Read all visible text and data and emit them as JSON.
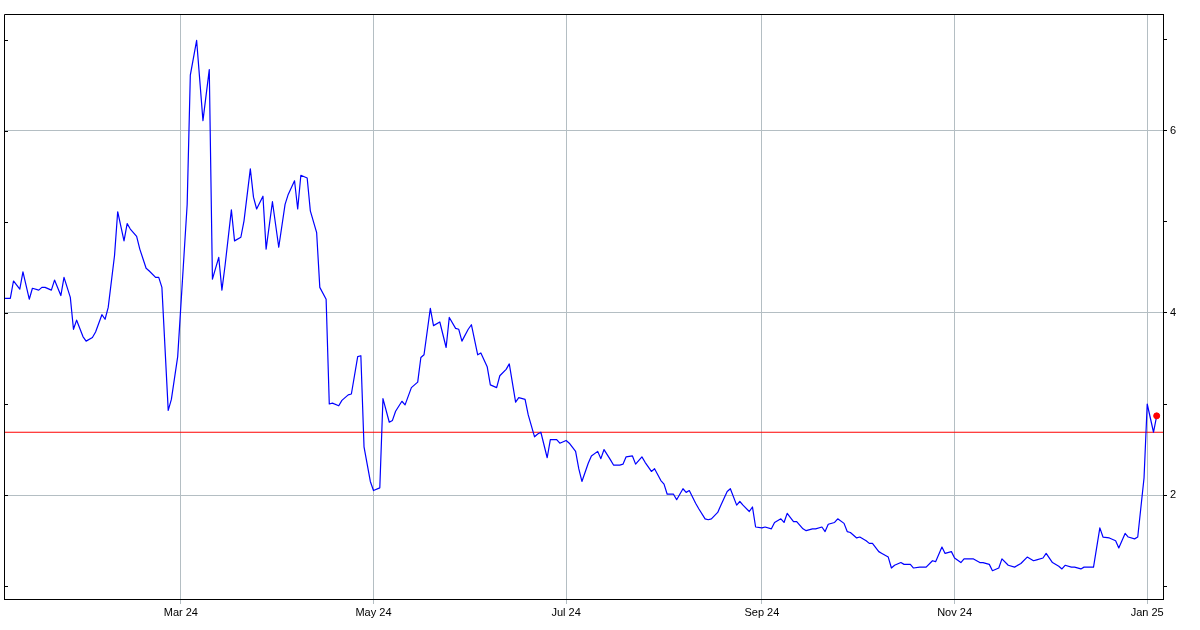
{
  "chart_data": {
    "type": "line",
    "x": [
      "2024-01-05",
      "2024-01-07",
      "2024-01-08",
      "2024-01-10",
      "2024-01-11",
      "2024-01-13",
      "2024-01-14",
      "2024-01-16",
      "2024-01-17",
      "2024-01-18",
      "2024-01-20",
      "2024-01-21",
      "2024-01-23",
      "2024-01-24",
      "2024-01-26",
      "2024-01-27",
      "2024-01-28",
      "2024-01-30",
      "2024-01-31",
      "2024-02-02",
      "2024-02-03",
      "2024-02-05",
      "2024-02-06",
      "2024-02-07",
      "2024-02-09",
      "2024-02-10",
      "2024-02-12",
      "2024-02-13",
      "2024-02-14",
      "2024-02-16",
      "2024-02-17",
      "2024-02-19",
      "2024-02-20",
      "2024-02-22",
      "2024-02-23",
      "2024-02-24",
      "2024-02-26",
      "2024-02-27",
      "2024-02-29",
      "2024-03-03",
      "2024-03-04",
      "2024-03-06",
      "2024-03-08",
      "2024-03-10",
      "2024-03-11",
      "2024-03-13",
      "2024-03-14",
      "2024-03-15",
      "2024-03-17",
      "2024-03-18",
      "2024-03-20",
      "2024-03-21",
      "2024-03-23",
      "2024-03-24",
      "2024-03-25",
      "2024-03-27",
      "2024-03-28",
      "2024-03-30",
      "2024-03-31",
      "2024-04-01",
      "2024-04-03",
      "2024-04-04",
      "2024-04-06",
      "2024-04-07",
      "2024-04-08",
      "2024-04-10",
      "2024-04-11",
      "2024-04-13",
      "2024-04-14",
      "2024-04-16",
      "2024-04-17",
      "2024-04-18",
      "2024-04-20",
      "2024-04-21",
      "2024-04-23",
      "2024-04-24",
      "2024-04-26",
      "2024-04-27",
      "2024-04-28",
      "2024-04-30",
      "2024-05-01",
      "2024-05-03",
      "2024-05-04",
      "2024-05-06",
      "2024-05-07",
      "2024-05-08",
      "2024-05-10",
      "2024-05-11",
      "2024-05-13",
      "2024-05-15",
      "2024-05-16",
      "2024-05-17",
      "2024-05-19",
      "2024-05-20",
      "2024-05-22",
      "2024-05-24",
      "2024-05-25",
      "2024-05-27",
      "2024-05-28",
      "2024-05-29",
      "2024-05-31",
      "2024-06-01",
      "2024-06-03",
      "2024-06-04",
      "2024-06-06",
      "2024-06-07",
      "2024-06-09",
      "2024-06-10",
      "2024-06-12",
      "2024-06-13",
      "2024-06-15",
      "2024-06-16",
      "2024-06-18",
      "2024-06-19",
      "2024-06-21",
      "2024-06-22",
      "2024-06-23",
      "2024-06-25",
      "2024-06-26",
      "2024-06-28",
      "2024-06-29",
      "2024-07-01",
      "2024-07-02",
      "2024-07-04",
      "2024-07-05",
      "2024-07-06",
      "2024-07-08",
      "2024-07-09",
      "2024-07-11",
      "2024-07-12",
      "2024-07-13",
      "2024-07-15",
      "2024-07-16",
      "2024-07-18",
      "2024-07-19",
      "2024-07-20",
      "2024-07-22",
      "2024-07-23",
      "2024-07-25",
      "2024-07-26",
      "2024-07-28",
      "2024-07-29",
      "2024-07-31",
      "2024-08-01",
      "2024-08-02",
      "2024-08-04",
      "2024-08-05",
      "2024-08-07",
      "2024-08-08",
      "2024-08-09",
      "2024-08-11",
      "2024-08-12",
      "2024-08-14",
      "2024-08-15",
      "2024-08-16",
      "2024-08-18",
      "2024-08-19",
      "2024-08-21",
      "2024-08-22",
      "2024-08-24",
      "2024-08-25",
      "2024-08-26",
      "2024-08-28",
      "2024-08-29",
      "2024-08-30",
      "2024-09-01",
      "2024-09-02",
      "2024-09-04",
      "2024-09-05",
      "2024-09-07",
      "2024-09-08",
      "2024-09-09",
      "2024-09-11",
      "2024-09-12",
      "2024-09-14",
      "2024-09-15",
      "2024-09-17",
      "2024-09-18",
      "2024-09-20",
      "2024-09-21",
      "2024-09-22",
      "2024-09-24",
      "2024-09-25",
      "2024-09-27",
      "2024-09-28",
      "2024-09-29",
      "2024-10-01",
      "2024-10-02",
      "2024-10-04",
      "2024-10-05",
      "2024-10-06",
      "2024-10-08",
      "2024-10-09",
      "2024-10-11",
      "2024-10-12",
      "2024-10-13",
      "2024-10-15",
      "2024-10-16",
      "2024-10-18",
      "2024-10-19",
      "2024-10-21",
      "2024-10-22",
      "2024-10-23",
      "2024-10-25",
      "2024-10-26",
      "2024-10-28",
      "2024-10-29",
      "2024-10-31",
      "2024-11-01",
      "2024-11-03",
      "2024-11-04",
      "2024-11-06",
      "2024-11-07",
      "2024-11-09",
      "2024-11-10",
      "2024-11-12",
      "2024-11-13",
      "2024-11-15",
      "2024-11-16",
      "2024-11-18",
      "2024-11-20",
      "2024-11-22",
      "2024-11-24",
      "2024-11-26",
      "2024-11-27",
      "2024-11-29",
      "2024-11-30",
      "2024-12-02",
      "2024-12-04",
      "2024-12-05",
      "2024-12-06",
      "2024-12-08",
      "2024-12-09",
      "2024-12-11",
      "2024-12-12",
      "2024-12-15",
      "2024-12-17",
      "2024-12-18",
      "2024-12-20",
      "2024-12-22",
      "2024-12-23",
      "2024-12-25",
      "2024-12-26",
      "2024-12-28",
      "2024-12-29",
      "2024-12-31",
      "2025-01-01",
      "2025-01-03",
      "2025-01-04"
    ],
    "series": [
      {
        "color": "#0000ff",
        "values": [
          4.16,
          4.16,
          4.35,
          4.26,
          4.45,
          4.15,
          4.27,
          4.25,
          4.28,
          4.28,
          4.25,
          4.36,
          4.19,
          4.39,
          4.17,
          3.82,
          3.92,
          3.74,
          3.69,
          3.73,
          3.79,
          3.98,
          3.93,
          4.06,
          4.63,
          5.11,
          4.79,
          4.98,
          4.92,
          4.84,
          4.7,
          4.49,
          4.46,
          4.39,
          4.39,
          4.28,
          2.93,
          3.05,
          3.52,
          5.19,
          6.61,
          6.99,
          6.11,
          6.67,
          4.37,
          4.61,
          4.25,
          4.52,
          5.13,
          4.79,
          4.83,
          5.01,
          5.58,
          5.27,
          5.14,
          5.28,
          4.7,
          5.22,
          4.97,
          4.72,
          5.19,
          5.3,
          5.45,
          5.14,
          5.51,
          5.48,
          5.12,
          4.88,
          4.28,
          4.15,
          3.0,
          3.01,
          2.98,
          3.04,
          3.1,
          3.11,
          3.52,
          3.53,
          2.53,
          2.15,
          2.05,
          2.08,
          3.06,
          2.8,
          2.82,
          2.92,
          3.03,
          2.99,
          3.18,
          3.24,
          3.51,
          3.54,
          4.05,
          3.86,
          3.9,
          3.62,
          3.95,
          3.83,
          3.82,
          3.69,
          3.82,
          3.87,
          3.54,
          3.56,
          3.41,
          3.21,
          3.18,
          3.31,
          3.38,
          3.44,
          3.02,
          3.07,
          3.05,
          2.88,
          2.64,
          2.67,
          2.69,
          2.41,
          2.61,
          2.61,
          2.57,
          2.6,
          2.57,
          2.48,
          2.29,
          2.15,
          2.35,
          2.43,
          2.48,
          2.4,
          2.5,
          2.39,
          2.33,
          2.33,
          2.34,
          2.42,
          2.43,
          2.34,
          2.42,
          2.36,
          2.26,
          2.29,
          2.16,
          2.12,
          2.01,
          2.01,
          1.95,
          2.07,
          2.03,
          2.05,
          1.91,
          1.85,
          1.74,
          1.73,
          1.74,
          1.81,
          1.89,
          2.04,
          2.07,
          1.89,
          1.93,
          1.89,
          1.82,
          1.87,
          1.65,
          1.64,
          1.65,
          1.63,
          1.7,
          1.74,
          1.7,
          1.8,
          1.71,
          1.71,
          1.63,
          1.61,
          1.63,
          1.63,
          1.65,
          1.6,
          1.68,
          1.7,
          1.74,
          1.69,
          1.6,
          1.59,
          1.53,
          1.54,
          1.5,
          1.47,
          1.47,
          1.38,
          1.36,
          1.32,
          1.2,
          1.23,
          1.26,
          1.24,
          1.24,
          1.2,
          1.21,
          1.21,
          1.21,
          1.28,
          1.27,
          1.43,
          1.36,
          1.38,
          1.31,
          1.26,
          1.3,
          1.3,
          1.3,
          1.26,
          1.26,
          1.24,
          1.17,
          1.2,
          1.3,
          1.23,
          1.21,
          1.25,
          1.32,
          1.28,
          1.29,
          1.31,
          1.36,
          1.26,
          1.22,
          1.19,
          1.23,
          1.21,
          1.21,
          1.19,
          1.21,
          1.21,
          1.64,
          1.54,
          1.53,
          1.5,
          1.42,
          1.58,
          1.54,
          1.52,
          1.54,
          2.19,
          3.0,
          2.69,
          2.87
        ]
      },
      {
        "type": "scatter",
        "x": [
          "2025-01-04"
        ],
        "color": "#ff0000",
        "marker": "circle",
        "values": [
          2.87
        ]
      }
    ],
    "xlim": [
      "2024-01-05",
      "2025-01-06"
    ],
    "xticks": [
      {
        "value": "2024-03-01",
        "label": "Mar 24"
      },
      {
        "value": "2024-05-01",
        "label": "May 24"
      },
      {
        "value": "2024-07-01",
        "label": "Jul 24"
      },
      {
        "value": "2024-09-01",
        "label": "Sep 24"
      },
      {
        "value": "2024-11-01",
        "label": "Nov 24"
      },
      {
        "value": "2025-01-01",
        "label": "Jan 25"
      }
    ],
    "ylim": [
      0.86,
      7.28
    ],
    "yticks": [
      {
        "value": 1,
        "label": null
      },
      2,
      {
        "value": 3,
        "label": null
      },
      4,
      {
        "value": 5,
        "label": null
      },
      6,
      {
        "value": 7,
        "label": null
      }
    ],
    "grid": true,
    "ref_lines": [
      {
        "axis": "y",
        "value": 2.69,
        "color": "#ff0000"
      }
    ]
  }
}
